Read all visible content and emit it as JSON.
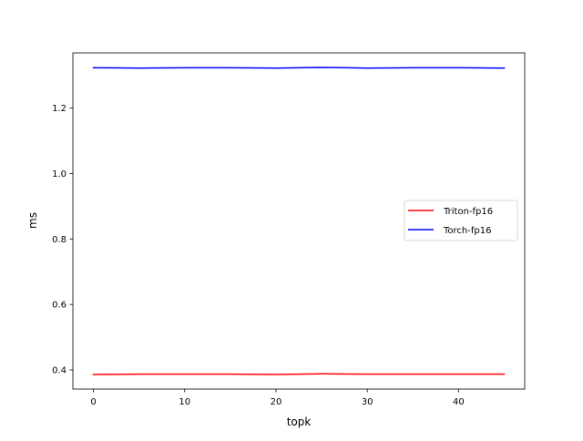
{
  "chart_data": {
    "type": "line",
    "title": "",
    "xlabel": "topk",
    "ylabel": "ms",
    "xlim": [
      -2.25,
      47.25
    ],
    "ylim": [
      0.3415,
      1.3685
    ],
    "xticks": [
      0,
      10,
      20,
      30,
      40
    ],
    "xtick_labels": [
      "0",
      "10",
      "20",
      "30",
      "40"
    ],
    "yticks": [
      0.4,
      0.6,
      0.8,
      1.0,
      1.2
    ],
    "ytick_labels": [
      "0.4",
      "0.6",
      "0.8",
      "1.0",
      "1.2"
    ],
    "grid": false,
    "legend_position": "center-right",
    "x": [
      0,
      5,
      10,
      15,
      20,
      25,
      30,
      35,
      40,
      45
    ],
    "series": [
      {
        "name": "Triton-fp16",
        "color": "#ff0000",
        "values": [
          0.386,
          0.387,
          0.387,
          0.387,
          0.386,
          0.388,
          0.387,
          0.387,
          0.387,
          0.387
        ]
      },
      {
        "name": "Torch-fp16",
        "color": "#0000ff",
        "values": [
          1.323,
          1.322,
          1.323,
          1.323,
          1.322,
          1.324,
          1.322,
          1.323,
          1.323,
          1.322
        ]
      }
    ]
  }
}
